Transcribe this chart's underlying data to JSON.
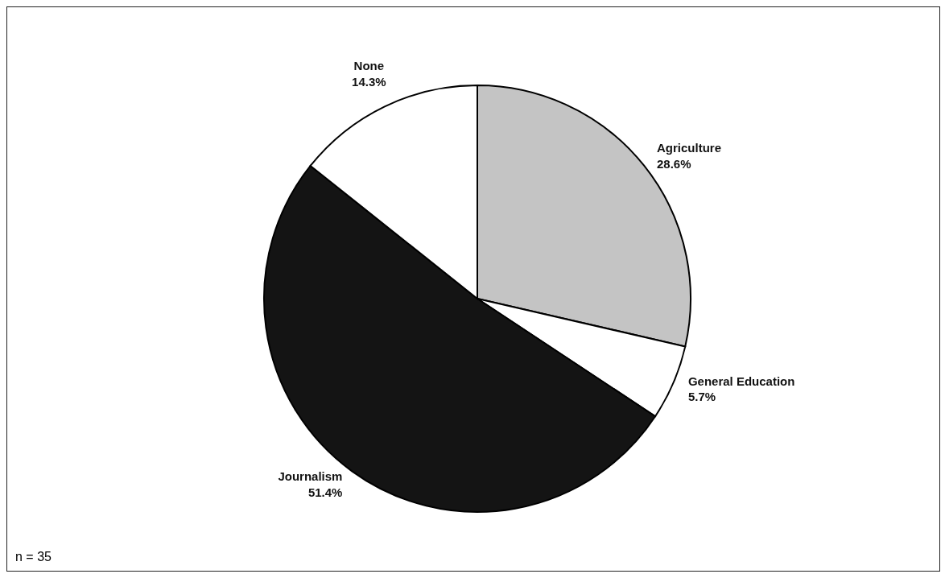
{
  "chart_data": {
    "type": "pie",
    "categories": [
      "Agriculture",
      "General Education",
      "Journalism",
      "None"
    ],
    "values": [
      28.6,
      5.7,
      51.4,
      14.3
    ],
    "colors": [
      "#c4c4c4",
      "#ffffff",
      "#141414",
      "#ffffff"
    ],
    "value_labels": [
      "28.6%",
      "5.7%",
      "51.4%",
      "14.3%"
    ],
    "annotations": [
      "n = 35"
    ]
  }
}
